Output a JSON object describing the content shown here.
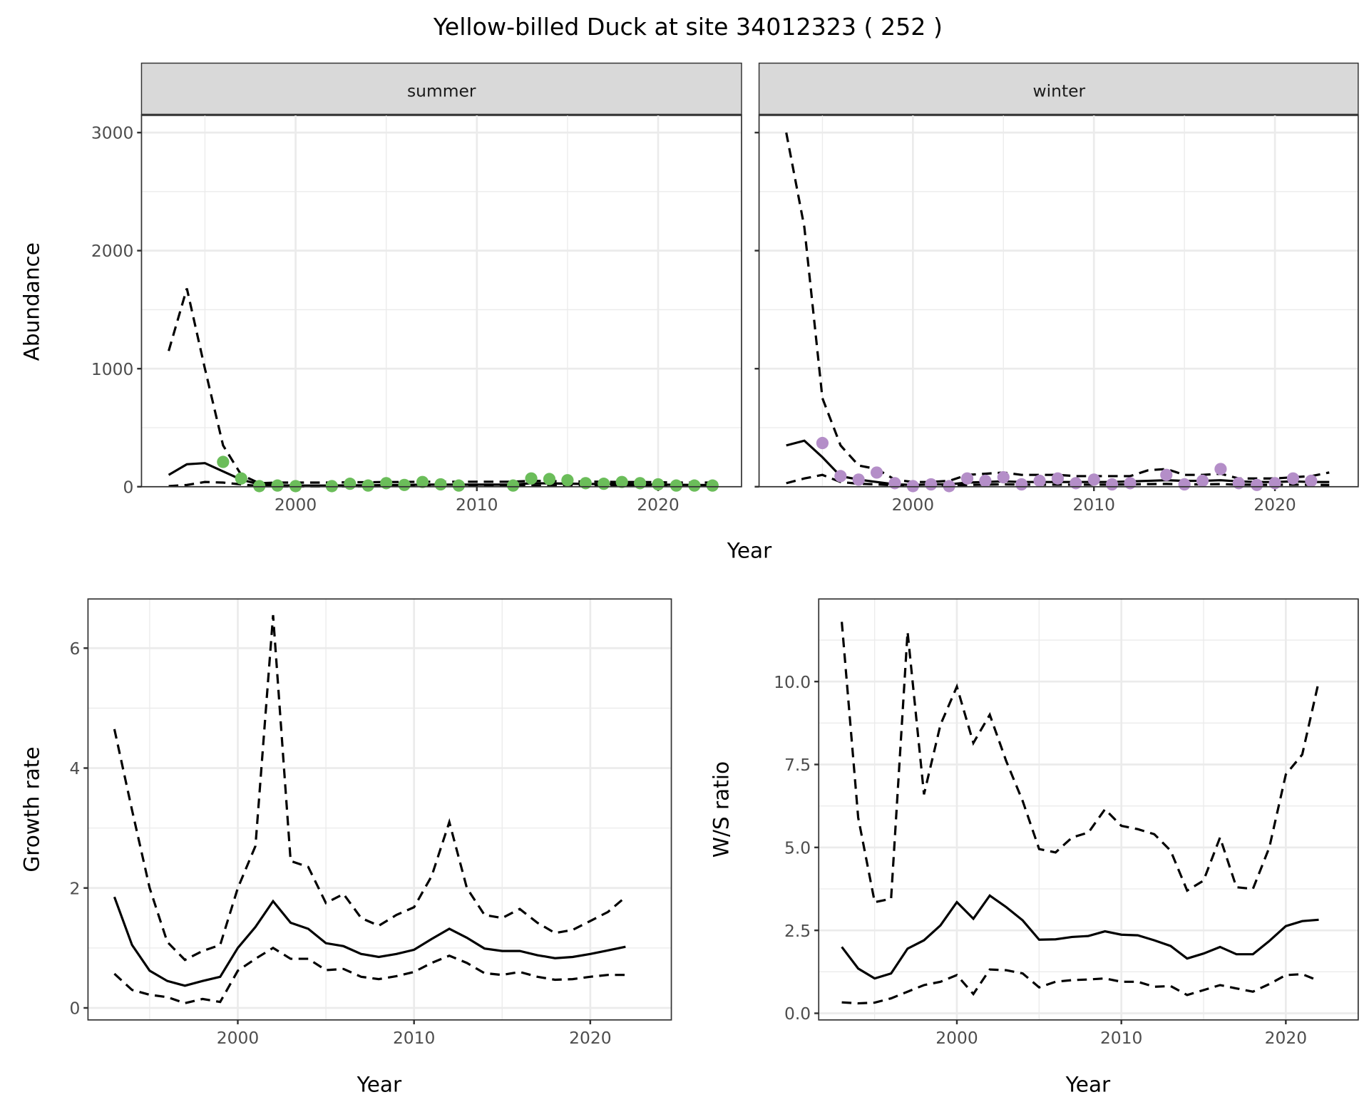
{
  "chart_data": [
    {
      "type": "line",
      "title": "Yellow-billed Duck at site 34012323 ( 252 )",
      "xlabel": "Year",
      "ylabel": "Abundance",
      "ylim": [
        0,
        3150
      ],
      "xlim": [
        1991.5,
        2024.6
      ],
      "yticks": [
        0,
        1000,
        2000,
        3000
      ],
      "yticklabels": [
        "0",
        "1000",
        "2000",
        "3000"
      ],
      "xticks": [
        2000,
        2010,
        2020
      ],
      "xticklabels": [
        "2000",
        "2010",
        "2020"
      ],
      "grid": true,
      "facets": [
        {
          "strip": "summer",
          "point_color": "#6bbd5a",
          "x": [
            1993,
            1994,
            1995,
            1996,
            1997,
            1998,
            1999,
            2000,
            2001,
            2002,
            2003,
            2004,
            2005,
            2006,
            2007,
            2008,
            2009,
            2010,
            2011,
            2012,
            2013,
            2014,
            2015,
            2016,
            2017,
            2018,
            2019,
            2020,
            2021,
            2022,
            2023
          ],
          "mean": [
            100,
            190,
            200,
            130,
            60,
            20,
            12,
            10,
            10,
            10,
            12,
            12,
            14,
            15,
            18,
            18,
            18,
            18,
            18,
            18,
            30,
            28,
            26,
            24,
            22,
            22,
            20,
            18,
            16,
            15,
            14
          ],
          "upper": [
            1150,
            1680,
            1000,
            350,
            100,
            30,
            35,
            35,
            35,
            35,
            38,
            38,
            40,
            40,
            42,
            42,
            42,
            42,
            42,
            42,
            50,
            48,
            46,
            44,
            42,
            40,
            40,
            38,
            36,
            35,
            35
          ],
          "lower": [
            5,
            15,
            40,
            35,
            20,
            5,
            3,
            3,
            3,
            3,
            4,
            4,
            5,
            5,
            6,
            6,
            6,
            6,
            6,
            6,
            10,
            10,
            9,
            9,
            8,
            8,
            7,
            6,
            5,
            5,
            5
          ],
          "points_x": [
            1996,
            1997,
            1998,
            1999,
            2000,
            2002,
            2003,
            2004,
            2005,
            2006,
            2007,
            2008,
            2009,
            2012,
            2013,
            2014,
            2015,
            2016,
            2017,
            2018,
            2019,
            2020,
            2021,
            2022,
            2023
          ],
          "points_y": [
            210,
            70,
            5,
            10,
            5,
            5,
            25,
            10,
            30,
            15,
            40,
            20,
            10,
            10,
            70,
            65,
            55,
            30,
            25,
            40,
            30,
            20,
            10,
            10,
            10
          ]
        },
        {
          "strip": "winter",
          "point_color": "#b48ec8",
          "x": [
            1993,
            1994,
            1995,
            1996,
            1997,
            1998,
            1999,
            2000,
            2001,
            2002,
            2003,
            2004,
            2005,
            2006,
            2007,
            2008,
            2009,
            2010,
            2011,
            2012,
            2013,
            2014,
            2015,
            2016,
            2017,
            2018,
            2019,
            2020,
            2021,
            2022,
            2023
          ],
          "mean": [
            350,
            390,
            250,
            90,
            60,
            40,
            20,
            15,
            20,
            20,
            35,
            40,
            45,
            40,
            40,
            40,
            40,
            40,
            40,
            45,
            50,
            55,
            50,
            50,
            55,
            45,
            40,
            40,
            45,
            40,
            40
          ],
          "upper": [
            3000,
            2200,
            750,
            350,
            180,
            150,
            60,
            40,
            40,
            50,
            100,
            110,
            120,
            100,
            100,
            100,
            90,
            90,
            90,
            90,
            140,
            150,
            100,
            100,
            110,
            70,
            70,
            70,
            80,
            90,
            120
          ],
          "lower": [
            30,
            70,
            100,
            40,
            25,
            20,
            12,
            8,
            10,
            10,
            15,
            18,
            20,
            18,
            18,
            18,
            18,
            18,
            18,
            20,
            22,
            24,
            20,
            20,
            22,
            18,
            16,
            16,
            18,
            16,
            15
          ],
          "points_x": [
            1995,
            1996,
            1997,
            1998,
            1999,
            2000,
            2001,
            2002,
            2003,
            2004,
            2005,
            2006,
            2007,
            2008,
            2009,
            2010,
            2011,
            2012,
            2014,
            2015,
            2016,
            2017,
            2018,
            2019,
            2020,
            2021,
            2022
          ],
          "points_y": [
            370,
            90,
            60,
            120,
            30,
            5,
            20,
            5,
            70,
            50,
            80,
            20,
            50,
            70,
            30,
            60,
            20,
            30,
            100,
            20,
            50,
            150,
            30,
            15,
            30,
            70,
            50
          ]
        }
      ]
    },
    {
      "type": "line",
      "xlabel": "Year",
      "ylabel": "Growth rate",
      "ylim": [
        -0.2,
        6.82
      ],
      "xlim": [
        1991.5,
        2024.6
      ],
      "yticks": [
        0,
        2,
        4,
        6
      ],
      "yticklabels": [
        "0",
        "2",
        "4",
        "6"
      ],
      "xticks": [
        2000,
        2010,
        2020
      ],
      "xticklabels": [
        "2000",
        "2010",
        "2020"
      ],
      "grid": true,
      "x": [
        1993,
        1994,
        1995,
        1996,
        1997,
        1998,
        1999,
        2000,
        2001,
        2002,
        2003,
        2004,
        2005,
        2006,
        2007,
        2008,
        2009,
        2010,
        2011,
        2012,
        2013,
        2014,
        2015,
        2016,
        2017,
        2018,
        2019,
        2020,
        2021,
        2022
      ],
      "mean": [
        1.85,
        1.05,
        0.62,
        0.45,
        0.37,
        0.45,
        0.52,
        1.0,
        1.35,
        1.78,
        1.42,
        1.32,
        1.08,
        1.03,
        0.9,
        0.85,
        0.9,
        0.97,
        1.15,
        1.32,
        1.17,
        0.99,
        0.95,
        0.95,
        0.88,
        0.83,
        0.85,
        0.9,
        0.96,
        1.02
      ],
      "upper": [
        4.65,
        3.3,
        2.0,
        1.1,
        0.8,
        0.95,
        1.05,
        2.0,
        2.7,
        6.55,
        2.45,
        2.35,
        1.75,
        1.9,
        1.5,
        1.37,
        1.55,
        1.68,
        2.2,
        3.1,
        2.0,
        1.55,
        1.5,
        1.65,
        1.42,
        1.25,
        1.3,
        1.45,
        1.6,
        1.85
      ],
      "lower": [
        0.57,
        0.3,
        0.22,
        0.18,
        0.08,
        0.15,
        0.1,
        0.62,
        0.82,
        1.0,
        0.82,
        0.82,
        0.63,
        0.65,
        0.52,
        0.48,
        0.53,
        0.6,
        0.75,
        0.87,
        0.75,
        0.58,
        0.55,
        0.6,
        0.52,
        0.47,
        0.48,
        0.52,
        0.55,
        0.55
      ]
    },
    {
      "type": "line",
      "xlabel": "Year",
      "ylabel": "W/S ratio",
      "ylim": [
        -0.2,
        12.49
      ],
      "xlim": [
        1991.6,
        2024.4
      ],
      "yticks": [
        0,
        2.5,
        5,
        7.5,
        10
      ],
      "yticklabels": [
        "0.0",
        "2.5",
        "5.0",
        "7.5",
        "10.0"
      ],
      "xticks": [
        2000,
        2010,
        2020
      ],
      "xticklabels": [
        "2000",
        "2010",
        "2020"
      ],
      "grid": true,
      "x": [
        1993,
        1994,
        1995,
        1996,
        1997,
        1998,
        1999,
        2000,
        2001,
        2002,
        2003,
        2004,
        2005,
        2006,
        2007,
        2008,
        2009,
        2010,
        2011,
        2012,
        2013,
        2014,
        2015,
        2016,
        2017,
        2018,
        2019,
        2020,
        2021,
        2022
      ],
      "mean": [
        2.0,
        1.35,
        1.05,
        1.2,
        1.95,
        2.2,
        2.65,
        3.35,
        2.85,
        3.55,
        3.2,
        2.8,
        2.22,
        2.23,
        2.3,
        2.33,
        2.47,
        2.37,
        2.35,
        2.2,
        2.03,
        1.65,
        1.8,
        2.0,
        1.78,
        1.78,
        2.18,
        2.63,
        2.78,
        2.82
      ],
      "upper": [
        11.8,
        5.9,
        3.35,
        3.45,
        11.5,
        6.6,
        8.7,
        9.85,
        8.15,
        9.0,
        7.6,
        6.4,
        4.95,
        4.85,
        5.3,
        5.45,
        6.15,
        5.65,
        5.55,
        5.4,
        4.9,
        3.7,
        4.0,
        5.3,
        3.8,
        3.75,
        5.0,
        7.2,
        7.8,
        10.0
      ],
      "lower": [
        0.33,
        0.3,
        0.32,
        0.45,
        0.65,
        0.85,
        0.95,
        1.15,
        0.58,
        1.32,
        1.3,
        1.2,
        0.78,
        0.95,
        1.0,
        1.02,
        1.05,
        0.95,
        0.95,
        0.8,
        0.82,
        0.55,
        0.7,
        0.85,
        0.75,
        0.65,
        0.88,
        1.15,
        1.18,
        0.98
      ]
    }
  ]
}
